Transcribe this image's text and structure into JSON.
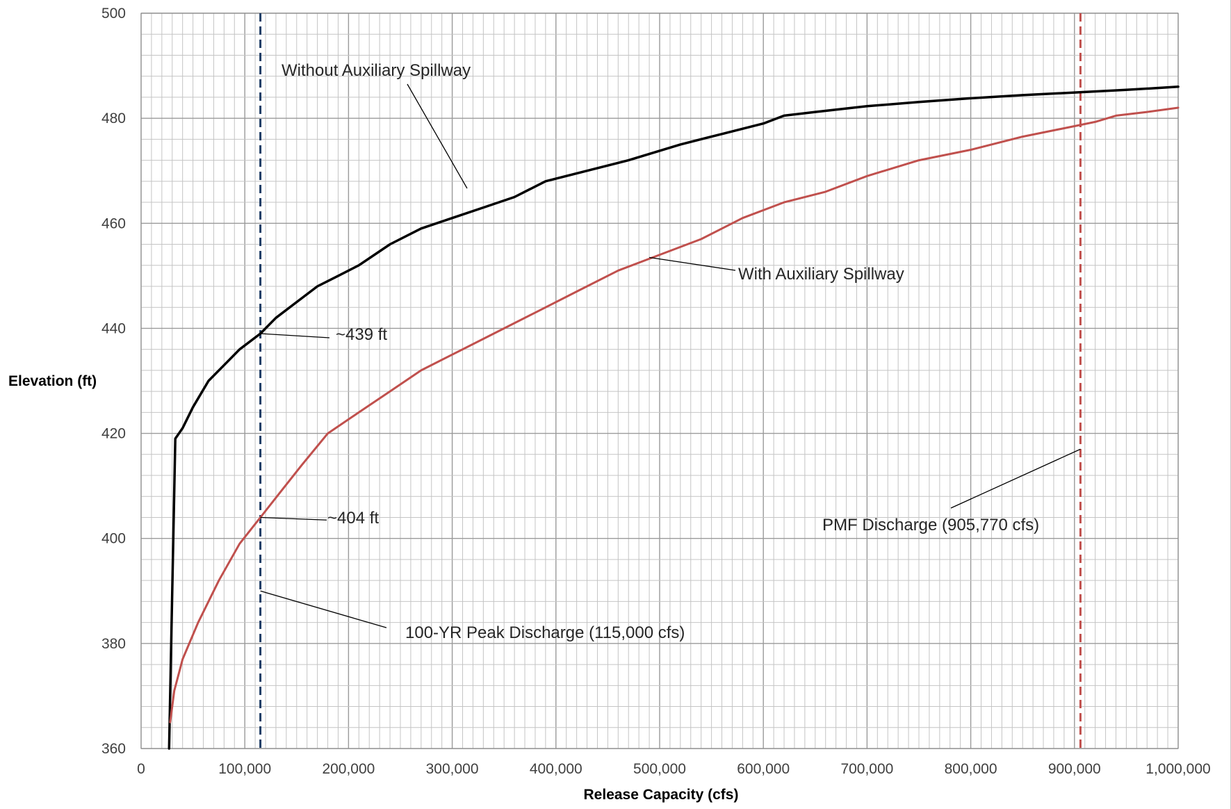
{
  "chart_data": {
    "type": "line",
    "title": "",
    "xlabel": "Release Capacity (cfs)",
    "ylabel": "Elevation (ft)",
    "xlim": [
      0,
      1000000
    ],
    "ylim": [
      360,
      500
    ],
    "x_ticks": [
      0,
      100000,
      200000,
      300000,
      400000,
      500000,
      600000,
      700000,
      800000,
      900000,
      1000000
    ],
    "x_tick_labels": [
      "0",
      "100,000",
      "200,000",
      "300,000",
      "400,000",
      "500,000",
      "600,000",
      "700,000",
      "800,000",
      "900,000",
      "1,000,000"
    ],
    "y_ticks": [
      360,
      380,
      400,
      420,
      440,
      460,
      480,
      500
    ],
    "y_tick_labels": [
      "360",
      "380",
      "400",
      "420",
      "440",
      "460",
      "480",
      "500"
    ],
    "grid": true,
    "series": [
      {
        "name": "Without Auxiliary Spillway",
        "color": "#000000",
        "x": [
          27000,
          30000,
          33000,
          40000,
          50000,
          65000,
          80000,
          95000,
          115000,
          130000,
          150000,
          170000,
          190000,
          210000,
          240000,
          270000,
          300000,
          330000,
          360000,
          390000,
          430000,
          470000,
          520000,
          560000,
          600000,
          620000,
          650000,
          700000,
          750000,
          800000,
          850000,
          900000,
          950000,
          1000000
        ],
        "y": [
          360,
          390,
          419,
          421,
          425,
          430,
          433,
          436,
          439,
          442,
          445,
          448,
          450,
          452,
          456,
          459,
          461,
          463,
          465,
          468,
          470,
          472,
          475,
          477,
          479,
          480.5,
          481.2,
          482.3,
          483.1,
          483.8,
          484.4,
          484.9,
          485.4,
          486
        ]
      },
      {
        "name": "With Auxiliary Spillway",
        "color": "#c0504d",
        "x": [
          28000,
          32000,
          40000,
          55000,
          75000,
          95000,
          115000,
          135000,
          155000,
          180000,
          210000,
          240000,
          270000,
          300000,
          340000,
          380000,
          420000,
          460000,
          500000,
          540000,
          580000,
          620000,
          660000,
          700000,
          750000,
          800000,
          850000,
          900000,
          920000,
          940000,
          970000,
          1000000
        ],
        "y": [
          365,
          371,
          377,
          384,
          392,
          399,
          404,
          409,
          414,
          420,
          424,
          428,
          432,
          435,
          439,
          443,
          447,
          451,
          454,
          457,
          461,
          464,
          466,
          469,
          472,
          474,
          476.5,
          478.5,
          479.3,
          480.5,
          481.2,
          482
        ]
      }
    ],
    "reference_lines": [
      {
        "x": 115000,
        "color": "#1f3d66",
        "style": "dashed"
      },
      {
        "x": 905770,
        "color": "#c0504d",
        "style": "dashed"
      }
    ],
    "annotations": [
      {
        "text": "Without Auxiliary Spillway"
      },
      {
        "text": "With Auxiliary Spillway"
      },
      {
        "text": "~439 ft"
      },
      {
        "text": "~404 ft"
      },
      {
        "text": "100-YR Peak Discharge (115,000  cfs)"
      },
      {
        "text": "PMF Discharge (905,770  cfs)"
      }
    ]
  }
}
